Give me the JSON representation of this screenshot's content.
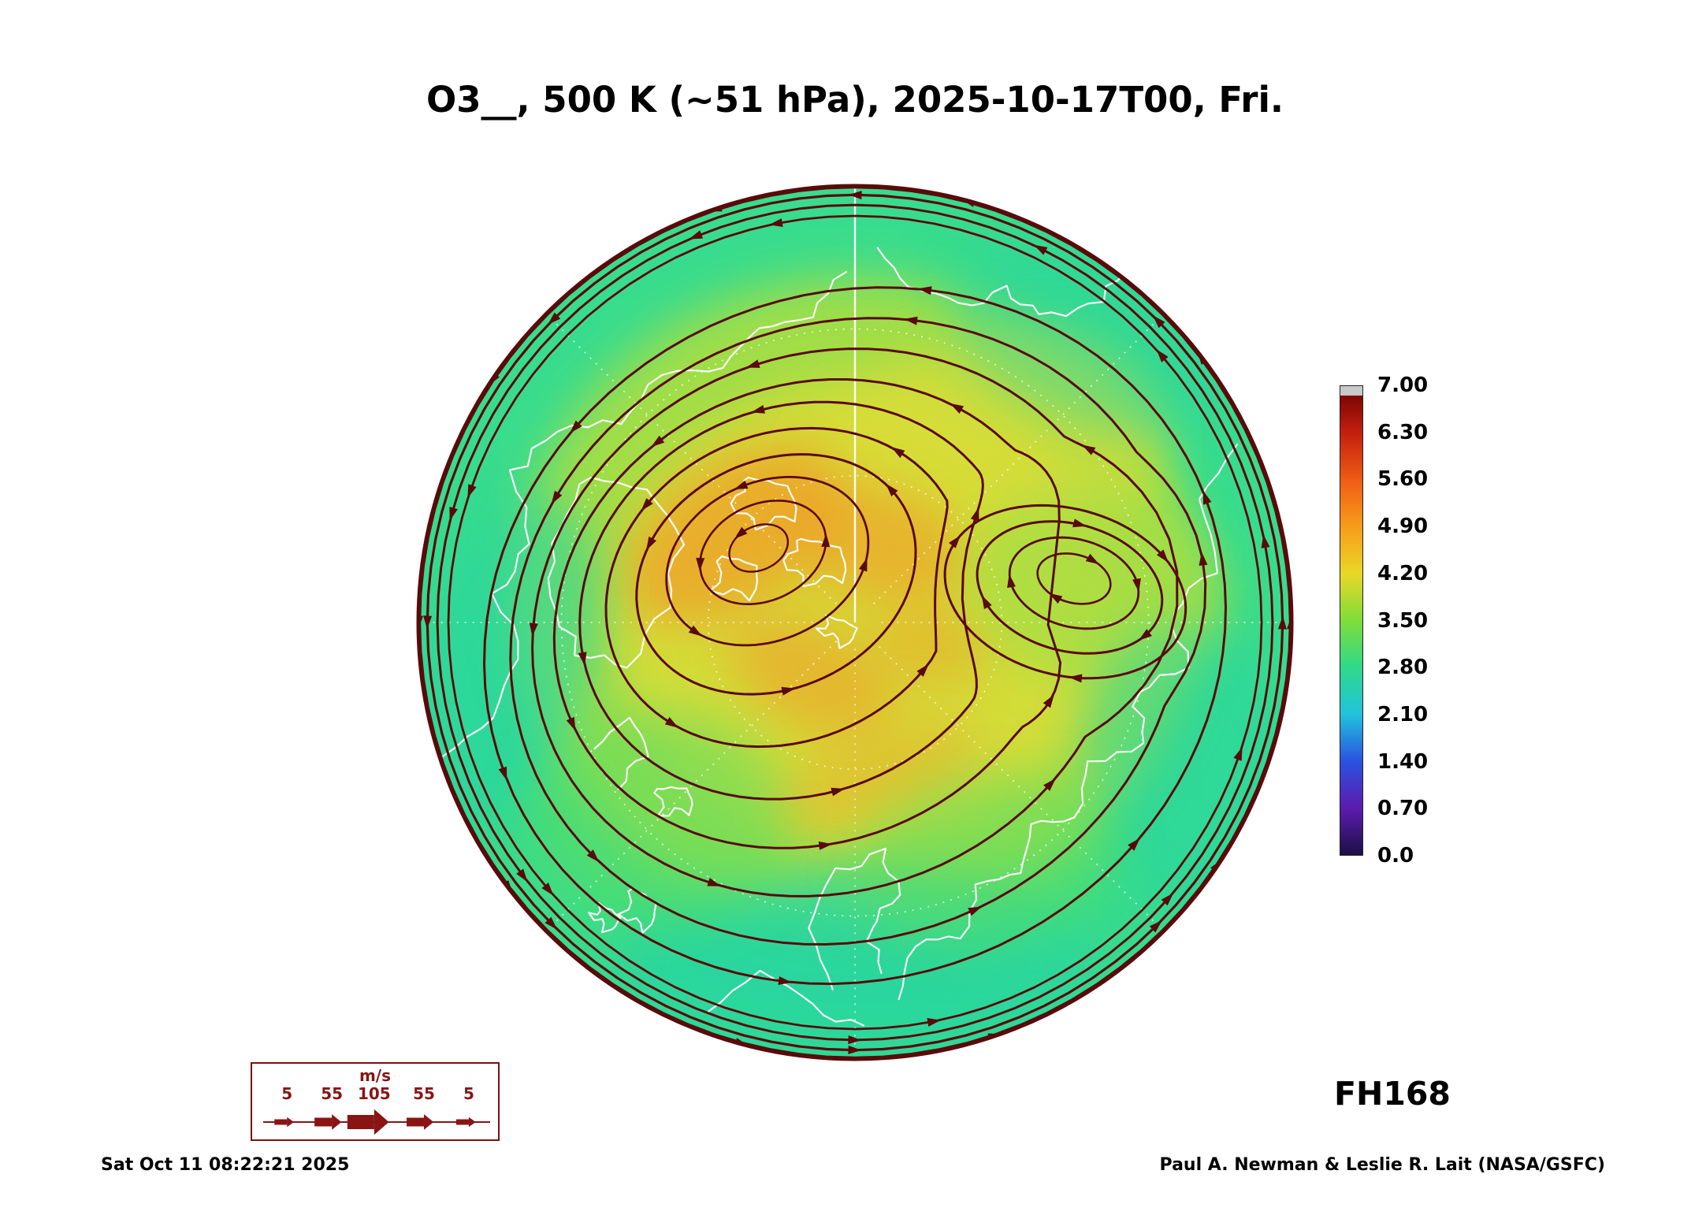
{
  "title": "O3__, 500 K (~51 hPa), 2025-10-17T00, Fri.",
  "colorbar": {
    "ticks": [
      "7.00",
      "6.30",
      "5.60",
      "4.90",
      "4.20",
      "3.50",
      "2.80",
      "2.10",
      "1.40",
      "0.70",
      "0.0"
    ],
    "colors_top_to_bottom": [
      "#6b0000",
      "#c41f10",
      "#ef5c14",
      "#f89c1b",
      "#e8d826",
      "#7fdc3a",
      "#2ed98a",
      "#22c3dc",
      "#2a52e0",
      "#5c1bb0",
      "#1c1044"
    ],
    "cap_color": "#c9c9c9"
  },
  "wind_legend": {
    "unit": "m/s",
    "values": [
      "5",
      "55",
      "105",
      "55",
      "5"
    ],
    "color": "#8a1414"
  },
  "map_colors": {
    "base": "#38dc8e",
    "yellow_green": "#a6de44",
    "yellow": "#d9dd39",
    "orange": "#f29a26",
    "teal": "#27d5a2",
    "green": "#5bdd62",
    "stream": "#5a0a0a",
    "coast": "#ffffff",
    "graticule": "#ffffff"
  },
  "footer": {
    "timestamp": "Sat Oct 11 08:22:21 2025",
    "credit": "Paul A. Newman & Leslie R. Lait (NASA/GSFC)",
    "forecast_hour": "FH168"
  },
  "chart_data": {
    "type": "heatmap",
    "title": "O3__, 500 K (~51 hPa), 2025-10-17T00, Fri.",
    "species": "O3",
    "level": "500 K (~51 hPa)",
    "valid_time": "2025-10-17T00, Fri.",
    "forecast_hour": 168,
    "projection": "north polar stereographic",
    "colorbar_levels": [
      0.0,
      0.7,
      1.4,
      2.1,
      2.8,
      3.5,
      4.2,
      4.9,
      5.6,
      6.3,
      7.0
    ],
    "colorbar_tick_labels": [
      "7.00",
      "6.30",
      "5.60",
      "4.90",
      "4.20",
      "3.50",
      "2.80",
      "2.10",
      "1.40",
      "0.70",
      "0.0"
    ],
    "colorbar_colors_low_to_high": [
      "#1c1044",
      "#5c1bb0",
      "#2a52e0",
      "#22c3dc",
      "#2ed98a",
      "#7fdc3a",
      "#e8d826",
      "#f89c1b",
      "#ef5c14",
      "#c41f10",
      "#6b0000"
    ],
    "wind_legend_unit": "m/s",
    "wind_legend_ms": [
      5,
      55,
      105,
      55,
      5
    ],
    "overlays": [
      {
        "name": "wind streamlines with arrowheads",
        "color": "#5a0a0a"
      },
      {
        "name": "coastlines",
        "color": "#ffffff"
      },
      {
        "name": "dotted lat/lon graticule",
        "color": "#ffffff"
      }
    ],
    "field_summary": "Ozone ~2.8-3.5 (green/teal) around the disc edge, ~3.5-4.2 (yellow-green) over mid-latitudes, ~4.2-4.9 (yellow-orange) patches near the pole; dark-red streamlines circle the vortex counterclockwise with a closed gyre on the right side and a dense jet ring hugging the outer boundary.",
    "annotations": [
      "FH168",
      "Sat Oct 11 08:22:21 2025",
      "Paul A. Newman & Leslie R. Lait (NASA/GSFC)"
    ]
  }
}
